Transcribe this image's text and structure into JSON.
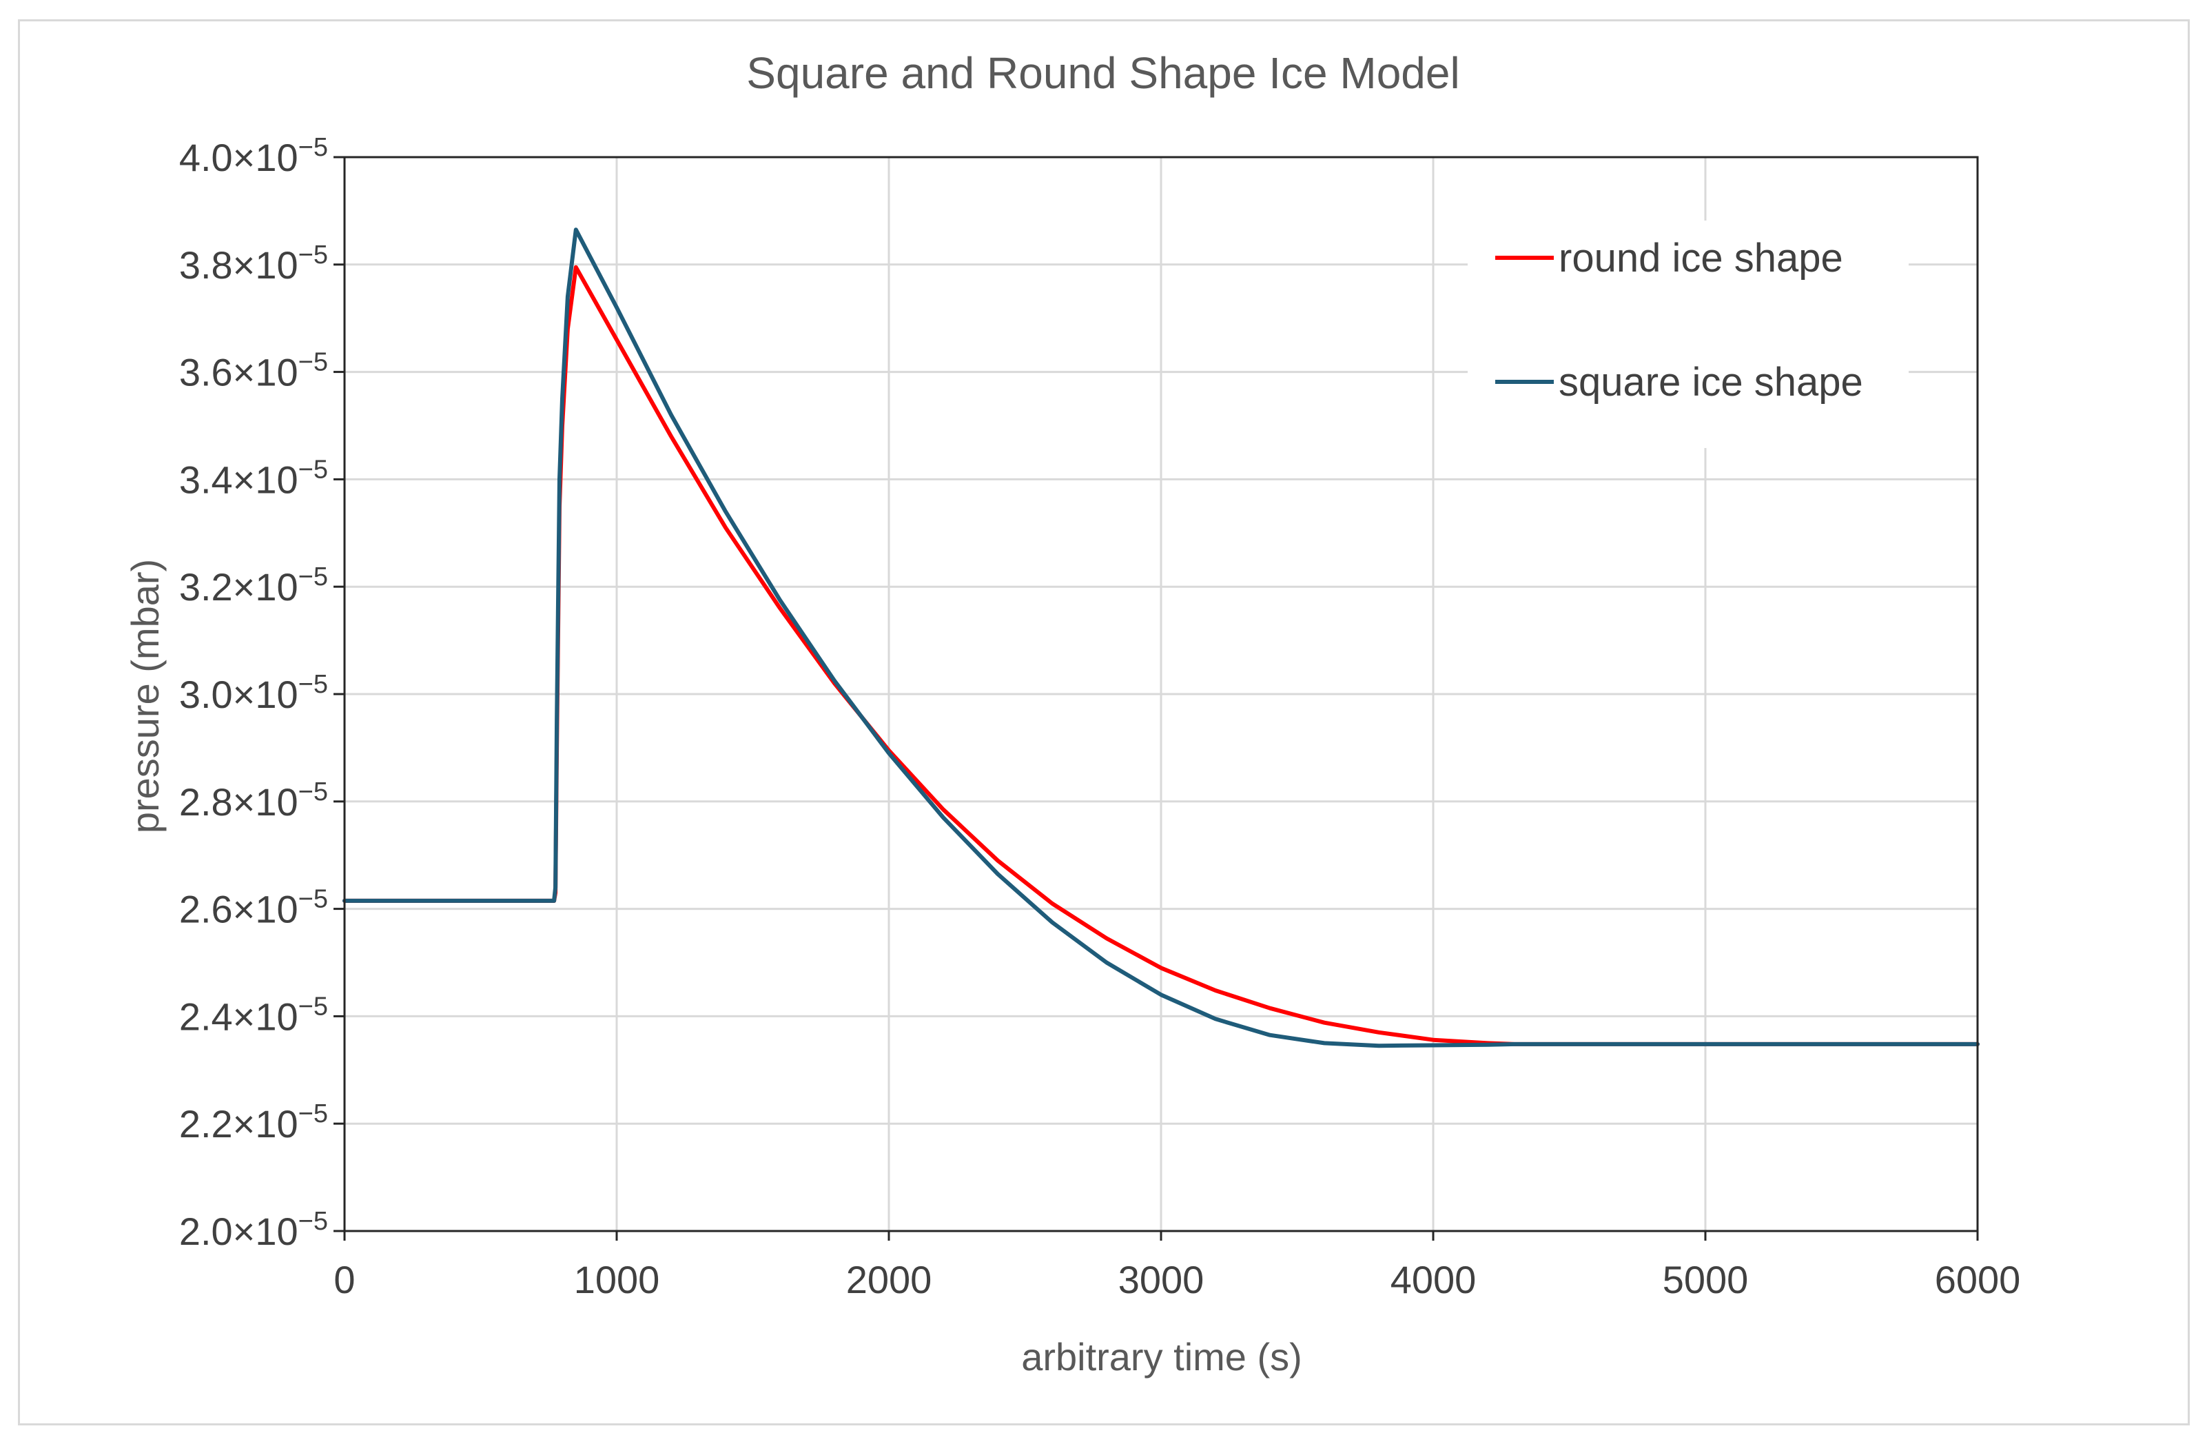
{
  "chart_data": {
    "type": "line",
    "title": "Square and Round Shape Ice Model",
    "xlabel": "arbitrary time (s)",
    "ylabel": "pressure (mbar)",
    "xlim": [
      0,
      6000
    ],
    "ylim": [
      2e-05,
      4e-05
    ],
    "x_ticks": [
      0,
      1000,
      2000,
      3000,
      4000,
      5000,
      6000
    ],
    "x_tick_labels": [
      "0",
      "1000",
      "2000",
      "3000",
      "4000",
      "5000",
      "6000"
    ],
    "y_ticks": [
      2e-05,
      2.2e-05,
      2.4e-05,
      2.6e-05,
      2.8e-05,
      3e-05,
      3.2e-05,
      3.4e-05,
      3.6e-05,
      3.8e-05,
      4e-05
    ],
    "y_tick_mantissas": [
      "2.0",
      "2.2",
      "2.4",
      "2.6",
      "2.8",
      "3.0",
      "3.2",
      "3.4",
      "3.6",
      "3.8",
      "4.0"
    ],
    "y_tick_times": "×10",
    "y_tick_exponent": "−5",
    "grid": true,
    "legend_position": "top-right",
    "series": [
      {
        "name": "round ice shape",
        "color": "#ff0000",
        "x": [
          0,
          770,
          775,
          780,
          790,
          800,
          820,
          850,
          1000,
          1200,
          1400,
          1600,
          1800,
          2000,
          2200,
          2400,
          2600,
          2800,
          3000,
          3200,
          3400,
          3600,
          3800,
          4000,
          4200,
          4300,
          5000,
          6000
        ],
        "y": [
          2.615e-05,
          2.615e-05,
          2.63e-05,
          2.9e-05,
          3.35e-05,
          3.5e-05,
          3.68e-05,
          3.795e-05,
          3.66e-05,
          3.48e-05,
          3.31e-05,
          3.16e-05,
          3.02e-05,
          2.895e-05,
          2.785e-05,
          2.69e-05,
          2.61e-05,
          2.545e-05,
          2.49e-05,
          2.448e-05,
          2.415e-05,
          2.388e-05,
          2.37e-05,
          2.356e-05,
          2.35e-05,
          2.348e-05,
          2.348e-05,
          2.348e-05
        ],
        "note_values_are_shifted": false
      },
      {
        "name": "square ice shape",
        "color": "#1f5c7a",
        "x": [
          0,
          770,
          775,
          780,
          790,
          800,
          820,
          850,
          1000,
          1200,
          1400,
          1600,
          1800,
          2000,
          2200,
          2400,
          2600,
          2800,
          3000,
          3200,
          3400,
          3600,
          3800,
          4000,
          4200,
          4300,
          5000,
          6000
        ],
        "y": [
          2.615e-05,
          2.615e-05,
          2.64e-05,
          2.95e-05,
          3.4e-05,
          3.55e-05,
          3.74e-05,
          3.865e-05,
          3.72e-05,
          3.52e-05,
          3.34e-05,
          3.175e-05,
          3.025e-05,
          2.89e-05,
          2.77e-05,
          2.665e-05,
          2.575e-05,
          2.5e-05,
          2.44e-05,
          2.395e-05,
          2.365e-05,
          2.35e-05,
          2.345e-05,
          2.346e-05,
          2.347e-05,
          2.348e-05,
          2.348e-05,
          2.348e-05
        ]
      }
    ]
  }
}
